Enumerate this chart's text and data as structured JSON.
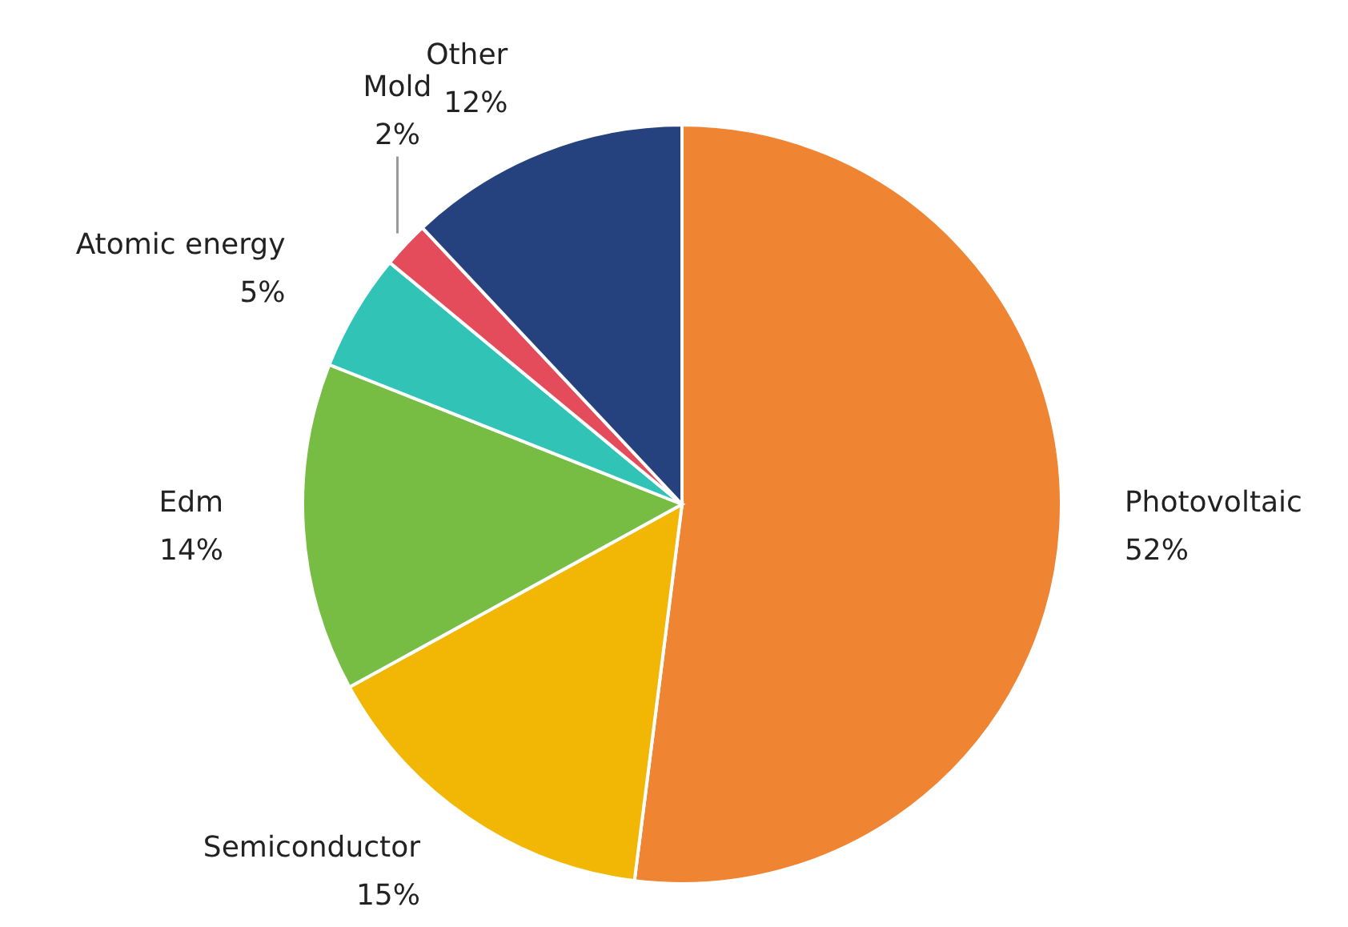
{
  "chart_data": {
    "type": "pie",
    "categories": [
      "Photovoltaic",
      "Semiconductor",
      "Edm",
      "Atomic energy",
      "Mold",
      "Other"
    ],
    "values": [
      52,
      15,
      14,
      5,
      2,
      12
    ],
    "value_labels": [
      "52%",
      "15%",
      "14%",
      "5%",
      "2%",
      "12%"
    ],
    "colors": [
      "#ef8432",
      "#f2b705",
      "#77bd43",
      "#31c3b6",
      "#e44b5b",
      "#25417e"
    ],
    "legend": false
  }
}
